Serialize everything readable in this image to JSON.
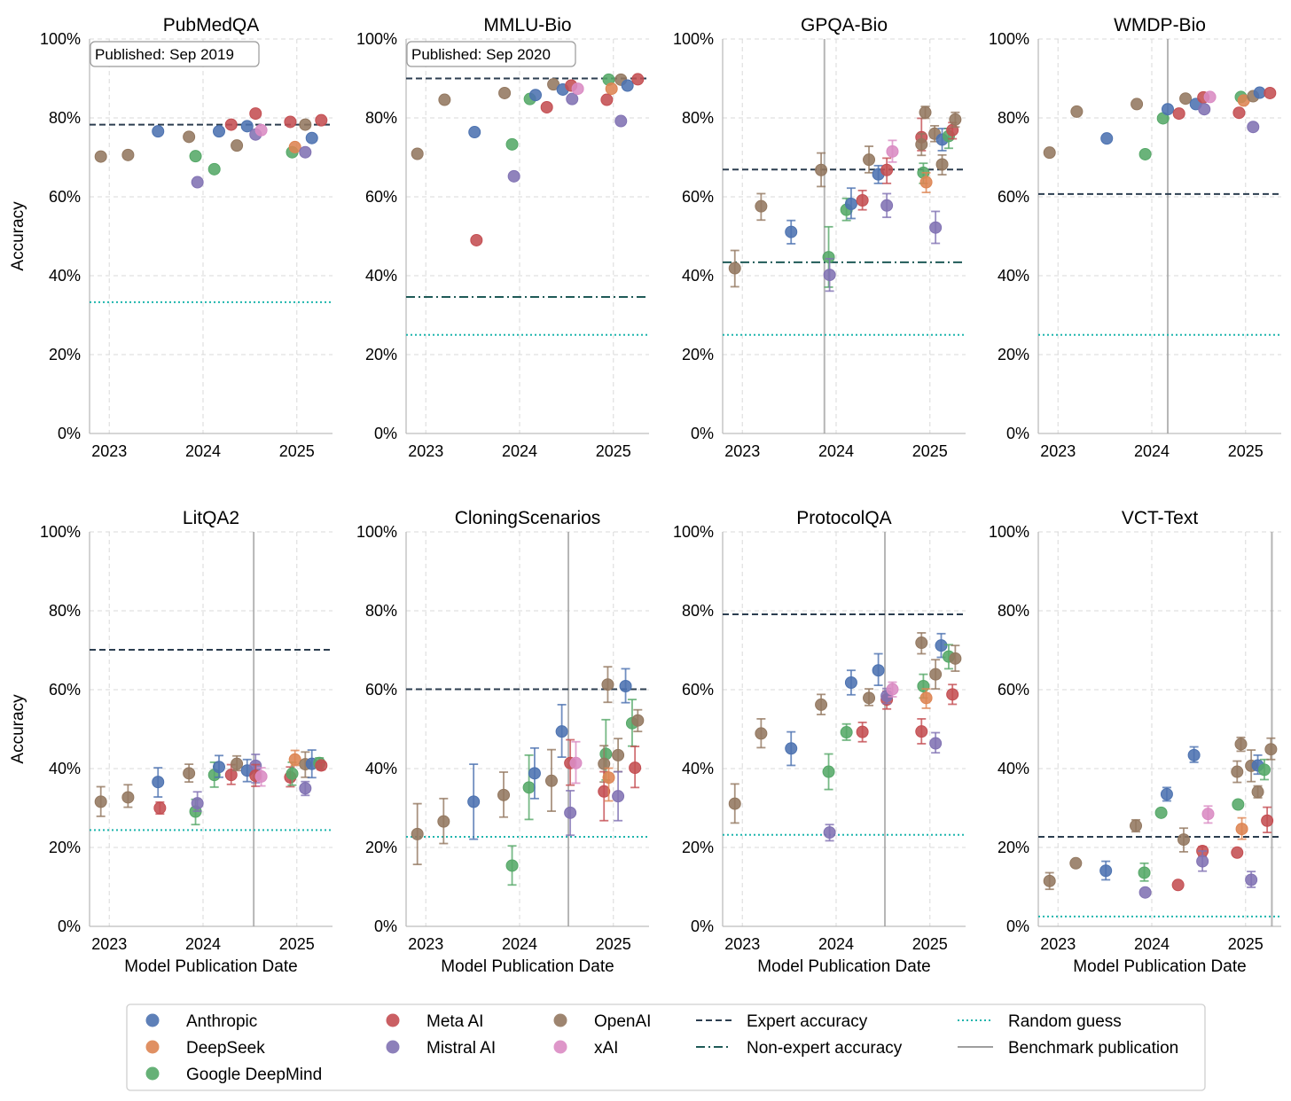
{
  "axes": {
    "ylabel": "Accuracy",
    "xlabel": "Model Publication Date",
    "xlim": [
      2022.79,
      2025.38
    ],
    "ylim": [
      0,
      100
    ],
    "yticks": [
      0,
      20,
      40,
      60,
      80,
      100
    ],
    "ytick_labels": [
      "0%",
      "20%",
      "40%",
      "60%",
      "80%",
      "100%"
    ],
    "xticks": [
      2023,
      2024,
      2025
    ],
    "xtick_labels": [
      "2023",
      "2024",
      "2025"
    ],
    "grid": true
  },
  "legend": {
    "placement": "bottom",
    "orgs": [
      {
        "key": "A",
        "name": "Anthropic",
        "color": "#4C72B0"
      },
      {
        "key": "D",
        "name": "DeepSeek",
        "color": "#DD8452"
      },
      {
        "key": "G",
        "name": "Google DeepMind",
        "color": "#55A868"
      },
      {
        "key": "M",
        "name": "Meta AI",
        "color": "#C44E52"
      },
      {
        "key": "Mi",
        "name": "Mistral AI",
        "color": "#8172B3"
      },
      {
        "key": "O",
        "name": "OpenAI",
        "color": "#937860"
      },
      {
        "key": "X",
        "name": "xAI",
        "color": "#DA8BC3"
      }
    ],
    "lines": [
      {
        "key": "expert",
        "name": "Expert accuracy",
        "color": "#2c3e50"
      },
      {
        "key": "nonexpert",
        "name": "Non-expert accuracy",
        "color": "#1f5a57"
      },
      {
        "key": "random",
        "name": "Random guess",
        "color": "#1fb5ad"
      },
      {
        "key": "published",
        "name": "Benchmark publication",
        "color": "#9e9e9e"
      }
    ]
  },
  "chart_data": [
    {
      "type": "scatter",
      "title": "PubMedQA",
      "annotation": "Published: Sep 2019",
      "expert": 78.3,
      "random": 33.3,
      "points": [
        [
          "O",
          2022.91,
          70.2
        ],
        [
          "O",
          2023.2,
          70.6
        ],
        [
          "A",
          2023.52,
          76.6
        ],
        [
          "O",
          2023.85,
          75.2
        ],
        [
          "G",
          2023.92,
          70.3
        ],
        [
          "Mi",
          2023.94,
          63.7
        ],
        [
          "G",
          2024.12,
          67.0
        ],
        [
          "A",
          2024.17,
          76.6
        ],
        [
          "M",
          2024.3,
          78.3
        ],
        [
          "O",
          2024.36,
          73.0
        ],
        [
          "A",
          2024.47,
          77.9
        ],
        [
          "M",
          2024.56,
          81.1
        ],
        [
          "Mi",
          2024.56,
          75.8
        ],
        [
          "X",
          2024.62,
          76.9
        ],
        [
          "M",
          2024.93,
          79.0
        ],
        [
          "G",
          2024.95,
          71.3
        ],
        [
          "D",
          2024.98,
          72.6
        ],
        [
          "O",
          2025.09,
          78.3
        ],
        [
          "Mi",
          2025.09,
          71.3
        ],
        [
          "A",
          2025.16,
          74.9
        ],
        [
          "M",
          2025.26,
          79.4
        ]
      ]
    },
    {
      "type": "scatter",
      "title": "MMLU-Bio",
      "annotation": "Published: Sep 2020",
      "expert": 90.0,
      "nonexpert": 34.6,
      "random": 25,
      "points": [
        [
          "O",
          2022.91,
          70.9
        ],
        [
          "O",
          2023.2,
          84.6
        ],
        [
          "A",
          2023.52,
          76.4
        ],
        [
          "M",
          2023.54,
          49.0
        ],
        [
          "O",
          2023.84,
          86.3
        ],
        [
          "G",
          2023.92,
          73.3
        ],
        [
          "Mi",
          2023.94,
          65.2
        ],
        [
          "G",
          2024.11,
          84.8
        ],
        [
          "A",
          2024.17,
          85.8
        ],
        [
          "M",
          2024.29,
          82.7
        ],
        [
          "O",
          2024.36,
          88.5
        ],
        [
          "A",
          2024.46,
          87.2
        ],
        [
          "M",
          2024.55,
          88.2
        ],
        [
          "Mi",
          2024.56,
          84.8
        ],
        [
          "X",
          2024.62,
          87.4
        ],
        [
          "M",
          2024.93,
          84.6
        ],
        [
          "G",
          2024.95,
          89.7
        ],
        [
          "D",
          2024.98,
          87.4
        ],
        [
          "O",
          2025.08,
          89.7
        ],
        [
          "Mi",
          2025.08,
          79.2
        ],
        [
          "A",
          2025.15,
          88.2
        ],
        [
          "M",
          2025.26,
          89.8
        ]
      ]
    },
    {
      "type": "scatter",
      "title": "GPQA-Bio",
      "published": 2023.875,
      "expert": 66.9,
      "nonexpert": 43.4,
      "random": 25,
      "points": [
        [
          "O",
          2022.92,
          41.9,
          37.2,
          46.4
        ],
        [
          "O",
          2023.2,
          57.6,
          54.1,
          60.8
        ],
        [
          "A",
          2023.52,
          51.1,
          48.1,
          54.0
        ],
        [
          "O",
          2023.84,
          66.8,
          62.6,
          71.1
        ],
        [
          "G",
          2023.92,
          44.7,
          37.1,
          52.4
        ],
        [
          "Mi",
          2023.93,
          40.2,
          36.1,
          44.3
        ],
        [
          "G",
          2024.11,
          56.7,
          54.0,
          59.6
        ],
        [
          "A",
          2024.16,
          58.2,
          54.5,
          62.2
        ],
        [
          "M",
          2024.28,
          59.1,
          56.7,
          61.6
        ],
        [
          "O",
          2024.35,
          69.4,
          66.1,
          72.8
        ],
        [
          "A",
          2024.45,
          65.7,
          63.4,
          67.9
        ],
        [
          "M",
          2024.54,
          66.8,
          63.4,
          69.8
        ],
        [
          "Mi",
          2024.54,
          57.8,
          54.8,
          60.8
        ],
        [
          "X",
          2024.6,
          71.5,
          68.8,
          74.3
        ],
        [
          "M",
          2024.91,
          75.1,
          71.7,
          79.9
        ],
        [
          "O",
          2024.91,
          73.3,
          70.5,
          76.0
        ],
        [
          "O",
          2024.95,
          81.4,
          79.9,
          82.9
        ],
        [
          "G",
          2024.93,
          66.1,
          63.4,
          68.5
        ],
        [
          "D",
          2024.96,
          63.7,
          61.1,
          66.1
        ],
        [
          "O",
          2025.05,
          76.0,
          74.0,
          78.0
        ],
        [
          "Mi",
          2025.06,
          52.2,
          48.2,
          56.3
        ],
        [
          "A",
          2025.13,
          74.5,
          71.7,
          77.3
        ],
        [
          "O",
          2025.13,
          68.2,
          65.6,
          70.6
        ],
        [
          "G",
          2025.2,
          75.4,
          72.3,
          77.3
        ],
        [
          "M",
          2025.24,
          76.9,
          74.7,
          78.8
        ],
        [
          "O",
          2025.27,
          79.6,
          77.7,
          81.4
        ]
      ]
    },
    {
      "type": "scatter",
      "title": "WMDP-Bio",
      "published": 2024.17,
      "expert": 60.7,
      "random": 25,
      "points": [
        [
          "O",
          2022.91,
          71.2
        ],
        [
          "O",
          2023.2,
          81.6
        ],
        [
          "A",
          2023.52,
          74.8
        ],
        [
          "O",
          2023.84,
          83.5
        ],
        [
          "G",
          2023.93,
          70.8
        ],
        [
          "G",
          2024.12,
          79.9
        ],
        [
          "A",
          2024.17,
          82.2
        ],
        [
          "M",
          2024.29,
          81.1
        ],
        [
          "O",
          2024.36,
          84.9
        ],
        [
          "A",
          2024.47,
          83.5
        ],
        [
          "M",
          2024.55,
          85.2
        ],
        [
          "Mi",
          2024.56,
          82.2
        ],
        [
          "X",
          2024.62,
          85.3
        ],
        [
          "M",
          2024.93,
          81.3
        ],
        [
          "G",
          2024.95,
          85.3
        ],
        [
          "D",
          2024.98,
          84.4
        ],
        [
          "O",
          2025.08,
          85.5
        ],
        [
          "Mi",
          2025.08,
          77.7
        ],
        [
          "A",
          2025.15,
          86.4
        ],
        [
          "M",
          2025.26,
          86.3
        ]
      ]
    },
    {
      "type": "scatter",
      "title": "LitQA2",
      "published": 2024.54,
      "expert": 70.1,
      "random": 24.4,
      "points": [
        [
          "O",
          2022.91,
          31.6,
          27.9,
          35.4
        ],
        [
          "O",
          2023.2,
          32.7,
          30.2,
          35.9
        ],
        [
          "A",
          2023.52,
          36.6,
          32.8,
          40.2
        ],
        [
          "M",
          2023.54,
          30.0,
          28.5,
          31.5
        ],
        [
          "O",
          2023.85,
          38.8,
          36.6,
          41.1
        ],
        [
          "G",
          2023.92,
          29.1,
          25.8,
          32.2
        ],
        [
          "Mi",
          2023.94,
          31.2,
          29.2,
          34.1
        ],
        [
          "G",
          2024.12,
          38.4,
          35.3,
          41.6
        ],
        [
          "A",
          2024.17,
          40.4,
          37.8,
          43.3
        ],
        [
          "M",
          2024.3,
          38.4,
          36.0,
          41.0
        ],
        [
          "O",
          2024.36,
          41.2,
          39.5,
          43.2
        ],
        [
          "A",
          2024.47,
          39.5,
          36.7,
          42.3
        ],
        [
          "Mi",
          2024.56,
          40.7,
          36.4,
          43.6
        ],
        [
          "M",
          2024.56,
          38.2,
          35.5,
          41.0
        ],
        [
          "X",
          2024.62,
          38.0,
          35.6,
          40.2
        ],
        [
          "M",
          2024.93,
          37.8,
          35.4,
          40.4
        ],
        [
          "G",
          2024.95,
          38.7,
          35.8,
          41.6
        ],
        [
          "D",
          2024.98,
          42.3,
          40.8,
          44.6
        ],
        [
          "O",
          2025.09,
          41.1,
          37.8,
          44.2
        ],
        [
          "Mi",
          2025.09,
          35.0,
          33.2,
          36.7
        ],
        [
          "A",
          2025.16,
          41.2,
          37.7,
          44.7
        ],
        [
          "G",
          2025.24,
          41.4,
          40.1,
          42.7
        ],
        [
          "M",
          2025.26,
          40.8,
          39.7,
          41.6
        ]
      ]
    },
    {
      "type": "scatter",
      "title": "CloningScenarios",
      "published": 2024.52,
      "expert": 60.1,
      "random": 22.7,
      "points": [
        [
          "O",
          2022.91,
          23.4,
          15.7,
          31.1
        ],
        [
          "O",
          2023.19,
          26.6,
          21.0,
          32.4
        ],
        [
          "A",
          2023.51,
          31.6,
          22.1,
          41.1
        ],
        [
          "O",
          2023.83,
          33.3,
          27.7,
          39.1
        ],
        [
          "G",
          2023.92,
          15.4,
          10.5,
          20.4
        ],
        [
          "G",
          2024.1,
          35.2,
          27.1,
          43.4
        ],
        [
          "A",
          2024.16,
          38.8,
          32.4,
          45.2
        ],
        [
          "O",
          2024.34,
          36.9,
          29.2,
          44.8
        ],
        [
          "A",
          2024.45,
          49.4,
          42.9,
          56.2
        ],
        [
          "M",
          2024.54,
          41.4,
          35.8,
          47.3
        ],
        [
          "Mi",
          2024.54,
          28.8,
          23.1,
          34.4
        ],
        [
          "X",
          2024.6,
          41.4,
          36.3,
          46.8
        ],
        [
          "O",
          2024.94,
          61.3,
          56.8,
          65.8
        ],
        [
          "G",
          2024.92,
          43.7,
          37.1,
          52.4
        ],
        [
          "O",
          2024.9,
          41.2,
          36.6,
          45.8
        ],
        [
          "M",
          2024.9,
          34.2,
          26.8,
          39.2
        ],
        [
          "D",
          2024.95,
          37.7,
          31.8,
          40.1
        ],
        [
          "O",
          2025.05,
          43.4,
          39.2,
          47.6
        ],
        [
          "Mi",
          2025.05,
          33.0,
          26.8,
          39.2
        ],
        [
          "A",
          2025.13,
          60.9,
          56.7,
          65.3
        ],
        [
          "G",
          2025.2,
          51.5,
          45.7,
          57.5
        ],
        [
          "O",
          2025.26,
          52.2,
          49.4,
          54.9
        ],
        [
          "M",
          2025.23,
          40.2,
          35.2,
          45.6
        ]
      ]
    },
    {
      "type": "scatter",
      "title": "ProtocolQA",
      "published": 2024.52,
      "expert": 79.1,
      "random": 23.2,
      "points": [
        [
          "O",
          2022.92,
          31.1,
          26.2,
          36.1
        ],
        [
          "O",
          2023.2,
          48.9,
          45.3,
          52.6
        ],
        [
          "A",
          2023.52,
          45.1,
          40.8,
          49.3
        ],
        [
          "O",
          2023.84,
          56.2,
          53.7,
          58.8
        ],
        [
          "G",
          2023.92,
          39.2,
          34.7,
          43.7
        ],
        [
          "Mi",
          2023.93,
          23.8,
          21.7,
          25.8
        ],
        [
          "G",
          2024.11,
          49.2,
          47.2,
          51.3
        ],
        [
          "A",
          2024.16,
          61.8,
          58.7,
          64.9
        ],
        [
          "M",
          2024.28,
          49.3,
          46.8,
          51.7
        ],
        [
          "O",
          2024.35,
          57.9,
          56.0,
          60.2
        ],
        [
          "A",
          2024.45,
          64.9,
          61.1,
          69.1
        ],
        [
          "M",
          2024.54,
          57.5,
          55.1,
          59.6
        ],
        [
          "Mi",
          2024.54,
          58.4,
          56.5,
          60.3
        ],
        [
          "X",
          2024.6,
          60.1,
          58.2,
          61.9
        ],
        [
          "O",
          2024.91,
          71.9,
          69.1,
          74.4
        ],
        [
          "G",
          2024.93,
          60.9,
          57.9,
          63.9
        ],
        [
          "D",
          2024.96,
          57.9,
          55.3,
          60.2
        ],
        [
          "M",
          2024.91,
          49.4,
          46.3,
          52.6
        ],
        [
          "O",
          2025.06,
          63.9,
          60.2,
          67.6
        ],
        [
          "Mi",
          2025.06,
          46.4,
          44.0,
          49.1
        ],
        [
          "A",
          2025.12,
          71.2,
          68.2,
          74.2
        ],
        [
          "G",
          2025.2,
          68.4,
          65.3,
          71.4
        ],
        [
          "O",
          2025.27,
          67.9,
          64.7,
          71.2
        ],
        [
          "M",
          2025.24,
          58.8,
          56.3,
          61.3
        ]
      ]
    },
    {
      "type": "scatter",
      "title": "VCT-Text",
      "published": 2025.28,
      "expert": 22.7,
      "random": 2.5,
      "points": [
        [
          "O",
          2022.91,
          11.5,
          9.4,
          13.6
        ],
        [
          "O",
          2023.19,
          16.0
        ],
        [
          "A",
          2023.51,
          14.1,
          11.8,
          16.5
        ],
        [
          "O",
          2023.83,
          25.5,
          24.0,
          27.0
        ],
        [
          "G",
          2023.92,
          13.6,
          11.5,
          16.0
        ],
        [
          "Mi",
          2023.93,
          8.6
        ],
        [
          "G",
          2024.1,
          28.8
        ],
        [
          "A",
          2024.16,
          33.5,
          31.8,
          35.2
        ],
        [
          "M",
          2024.28,
          10.5
        ],
        [
          "O",
          2024.34,
          22.0,
          18.9,
          24.9
        ],
        [
          "A",
          2024.45,
          43.4,
          41.6,
          45.5
        ],
        [
          "M",
          2024.54,
          19.1,
          17.8,
          20.2
        ],
        [
          "Mi",
          2024.54,
          16.5,
          14.0,
          19.1
        ],
        [
          "X",
          2024.6,
          28.5,
          26.2,
          30.5
        ],
        [
          "O",
          2024.95,
          46.2,
          44.4,
          47.9
        ],
        [
          "O",
          2024.91,
          39.2,
          36.5,
          41.9
        ],
        [
          "G",
          2024.92,
          30.9
        ],
        [
          "D",
          2024.96,
          24.7,
          22.1,
          27.5
        ],
        [
          "M",
          2024.91,
          18.7
        ],
        [
          "O",
          2025.06,
          40.7,
          36.7,
          44.7
        ],
        [
          "A",
          2025.13,
          40.8,
          38.6,
          43.4
        ],
        [
          "G",
          2025.2,
          39.7,
          37.2,
          42.3
        ],
        [
          "O",
          2025.13,
          34.1,
          32.6,
          35.6
        ],
        [
          "Mi",
          2025.06,
          11.8,
          9.9,
          13.9
        ],
        [
          "O",
          2025.27,
          44.9,
          42.3,
          47.7
        ],
        [
          "M",
          2025.23,
          26.8,
          23.8,
          30.2
        ]
      ]
    }
  ]
}
